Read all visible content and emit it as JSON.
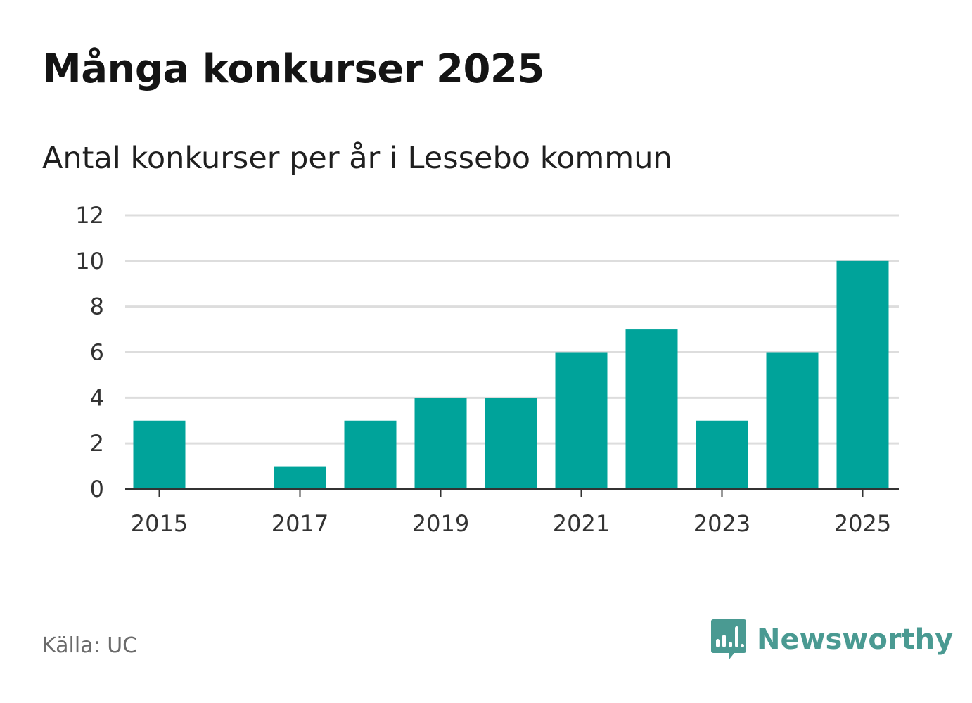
{
  "header": {
    "title": "Många konkurser 2025",
    "subtitle": "Antal konkurser per år i Lessebo kommun"
  },
  "footer": {
    "source": "Källa: UC",
    "brand": "Newsworthy",
    "brand_icon": "newsworthy-logo-icon"
  },
  "colors": {
    "bar": "#00a39a",
    "grid": "#dddddd",
    "axis": "#333333",
    "brand": "#4a9a92"
  },
  "chart_data": {
    "type": "bar",
    "title": "Många konkurser 2025",
    "subtitle": "Antal konkurser per år i Lessebo kommun",
    "categories": [
      "2015",
      "2016",
      "2017",
      "2018",
      "2019",
      "2020",
      "2021",
      "2022",
      "2023",
      "2024",
      "2025"
    ],
    "values": [
      3,
      0,
      1,
      3,
      4,
      4,
      6,
      7,
      3,
      6,
      10
    ],
    "x_tick_labels": [
      "2015",
      "2017",
      "2019",
      "2021",
      "2023",
      "2025"
    ],
    "y_ticks": [
      0,
      2,
      4,
      6,
      8,
      10,
      12
    ],
    "ylim": [
      0,
      12
    ],
    "xlabel": "",
    "ylabel": "",
    "grid": true
  }
}
